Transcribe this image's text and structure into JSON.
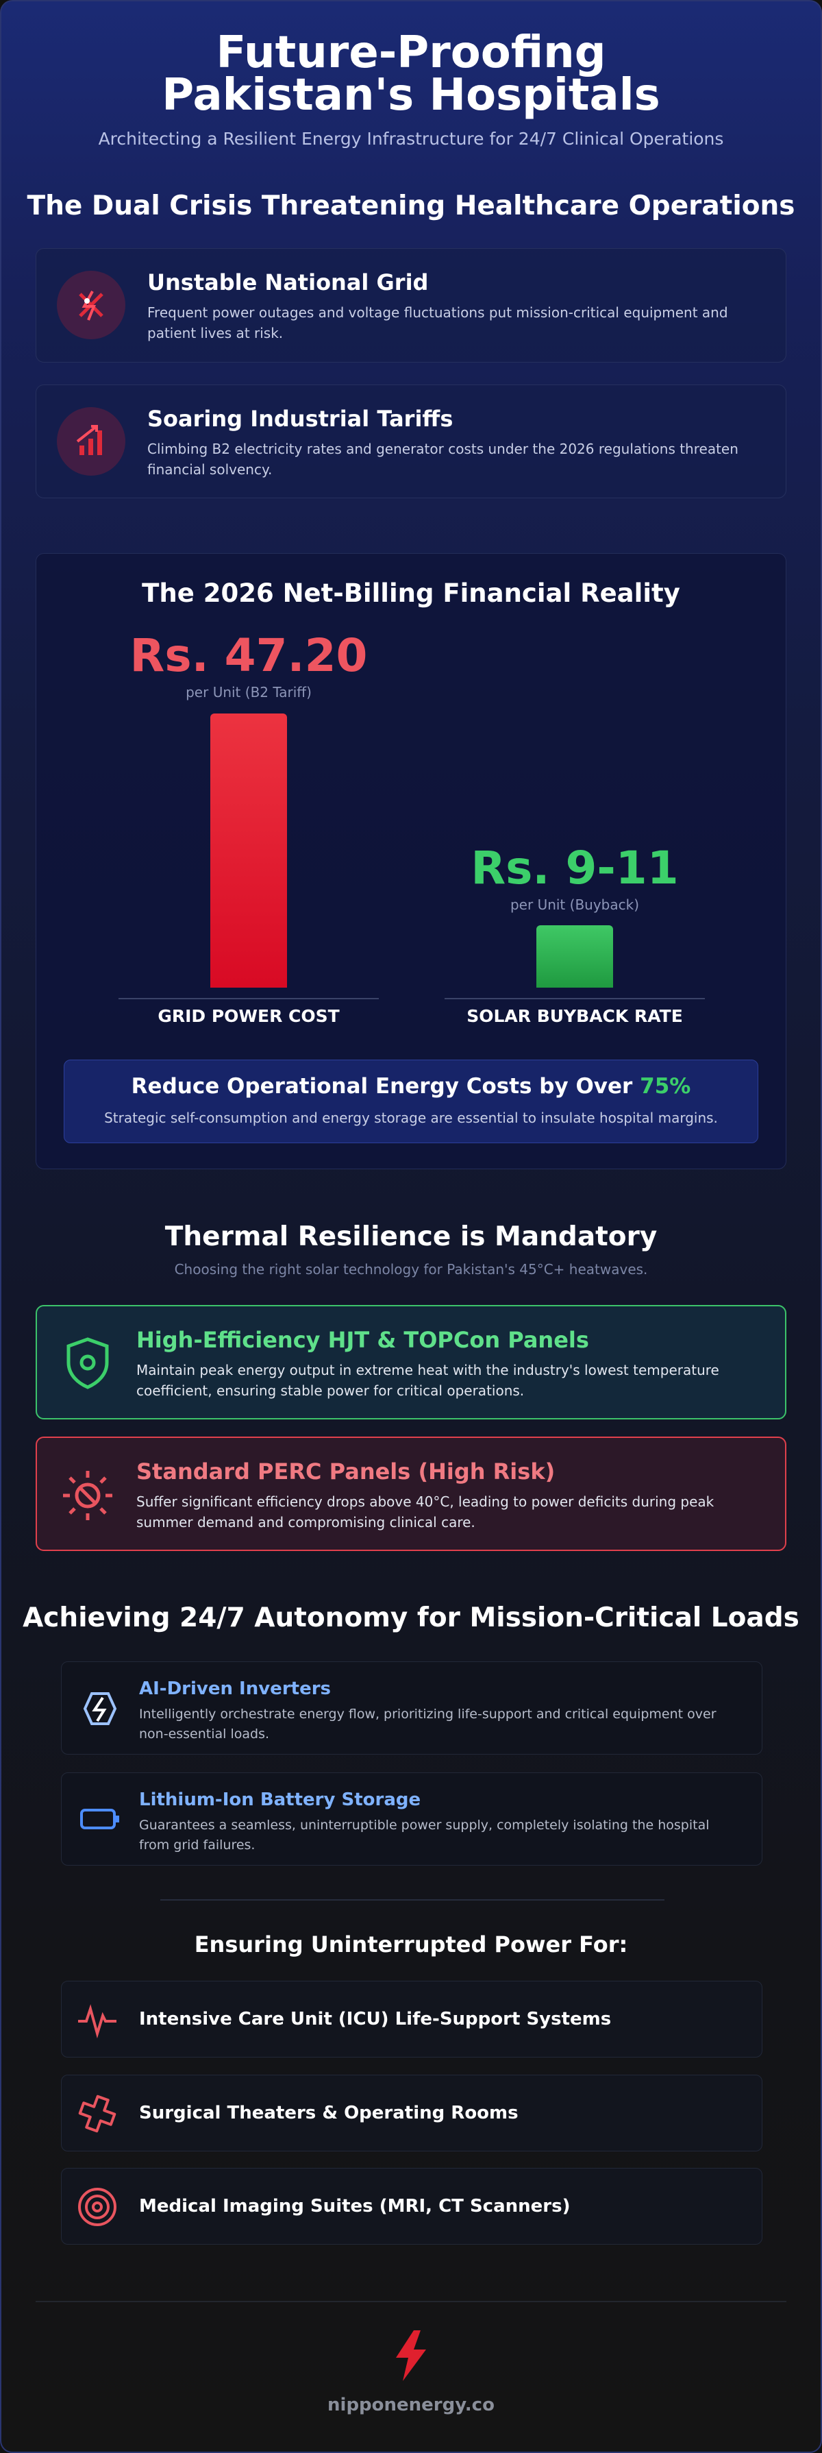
{
  "header": {
    "title": "Future-Proofing Pakistan's Hospitals",
    "subtitle": "Architecting a Resilient Energy Infrastructure for 24/7 Clinical Operations"
  },
  "crisis": {
    "heading": "The Dual Crisis Threatening Healthcare Operations",
    "cards": [
      {
        "title": "Unstable National Grid",
        "text": "Frequent power outages and voltage fluctuations put mission-critical equipment and patient lives at risk."
      },
      {
        "title": "Soaring Industrial Tariffs",
        "text": "Climbing B2 electricity rates and generator costs under the 2026 regulations threaten financial solvency."
      }
    ]
  },
  "financial": {
    "heading": "The 2026 Net-Billing Financial Reality",
    "bars": [
      {
        "amount": "Rs. 47.20",
        "unit": "per Unit (B2 Tariff)",
        "label": "GRID POWER COST"
      },
      {
        "amount": "Rs. 9-11",
        "unit": "per Unit (Buyback)",
        "label": "SOLAR BUYBACK RATE"
      }
    ],
    "callout": {
      "text": "Reduce Operational Energy Costs by Over",
      "highlight": "75%",
      "subtext": "Strategic self-consumption and energy storage are essential to insulate hospital margins."
    }
  },
  "thermal": {
    "heading": "Thermal Resilience is Mandatory",
    "subtitle": "Choosing the right solar technology for Pakistan's 45°C+ heatwaves.",
    "cards": [
      {
        "title": "High-Efficiency HJT & TOPCon Panels",
        "text": "Maintain peak energy output in extreme heat with the industry's lowest temperature coefficient, ensuring stable power for critical operations."
      },
      {
        "title": "Standard PERC Panels (High Risk)",
        "text": "Suffer significant efficiency drops above 40°C, leading to power deficits during peak summer demand and compromising clinical care."
      }
    ]
  },
  "autonomy": {
    "heading": "Achieving 24/7 Autonomy for Mission-Critical Loads",
    "features": [
      {
        "title": "AI-Driven Inverters",
        "text": "Intelligently orchestrate energy flow, prioritizing life-support and critical equipment over non-essential loads."
      },
      {
        "title": "Lithium-Ion Battery Storage",
        "text": "Guarantees a seamless, uninterruptible power supply, completely isolating the hospital from grid failures."
      }
    ],
    "subheading": "Ensuring Uninterrupted Power For:",
    "loads": [
      "Intensive Care Unit (ICU) Life-Support Systems",
      "Surgical Theaters & Operating Rooms",
      "Medical Imaging Suites (MRI, CT Scanners)"
    ]
  },
  "footer": {
    "brand": "nipponenergy.co"
  }
}
